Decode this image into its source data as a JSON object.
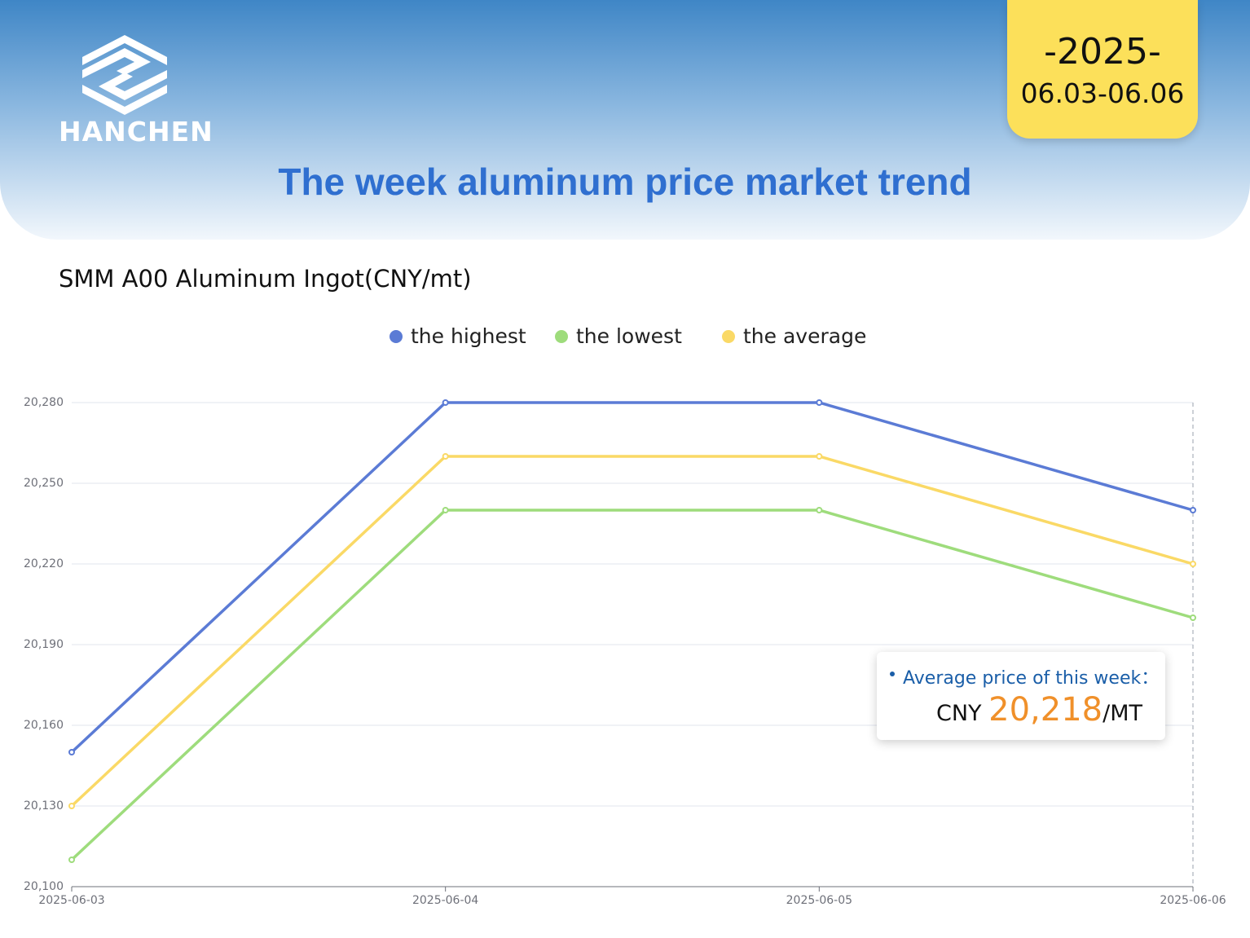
{
  "header": {
    "logo": "HANCHEN",
    "year": "-2025-",
    "dates": "06.03-06.06",
    "title": "The week aluminum price market trend"
  },
  "chart_data": {
    "type": "line",
    "title": "SMM A00 Aluminum Ingot(CNY/mt)",
    "categories": [
      "2025-06-03",
      "2025-06-04",
      "2025-06-05",
      "2025-06-06"
    ],
    "series": [
      {
        "name": "the highest",
        "color": "#5b7bd5",
        "values": [
          20150,
          20280,
          20280,
          20240
        ]
      },
      {
        "name": "the lowest",
        "color": "#9edc7c",
        "values": [
          20110,
          20240,
          20240,
          20200
        ]
      },
      {
        "name": "the average",
        "color": "#fad966",
        "values": [
          20130,
          20260,
          20260,
          20220
        ]
      }
    ],
    "ylim": [
      20100,
      20280
    ],
    "yticks": [
      {
        "value": 20100,
        "label": "20,100"
      },
      {
        "value": 20130,
        "label": "20,130"
      },
      {
        "value": 20160,
        "label": "20,160"
      },
      {
        "value": 20190,
        "label": "20,190"
      },
      {
        "value": 20220,
        "label": "20,220"
      },
      {
        "value": 20250,
        "label": "20,250"
      },
      {
        "value": 20280,
        "label": "20,280"
      }
    ],
    "grid": true,
    "legend": "top",
    "annotation": {
      "label": "Average price of this week：",
      "currency": "CNY",
      "value": "20,218",
      "unit": "/MT"
    }
  }
}
